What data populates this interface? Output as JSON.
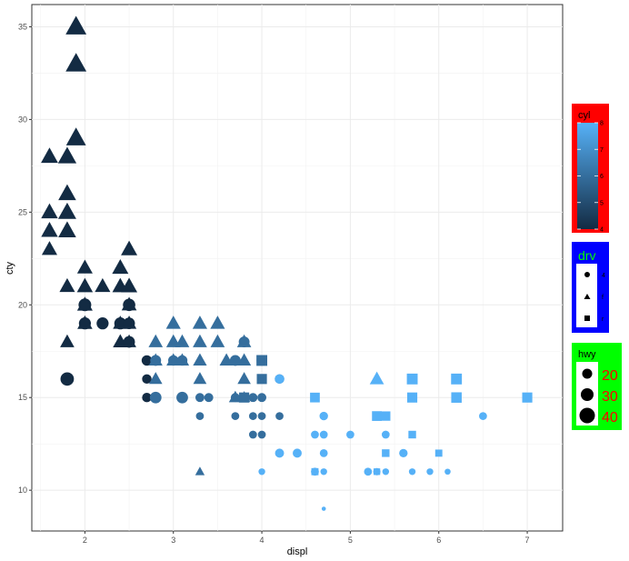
{
  "chart_data": {
    "type": "scatter",
    "xlabel": "displ",
    "ylabel": "cty",
    "xlim": [
      1.4,
      7.4
    ],
    "ylim": [
      7.8,
      36.2
    ],
    "x_ticks": [
      2,
      3,
      4,
      5,
      6,
      7
    ],
    "y_ticks": [
      10,
      15,
      20,
      25,
      30,
      35
    ],
    "grid": true,
    "shape_by": "drv",
    "color_by": "cyl",
    "size_by": "hwy",
    "points": [
      {
        "x": 1.9,
        "y": 35,
        "cyl": 4,
        "drv": "f",
        "hwy": 44
      },
      {
        "x": 1.9,
        "y": 33,
        "cyl": 4,
        "drv": "f",
        "hwy": 44
      },
      {
        "x": 1.9,
        "y": 29,
        "cyl": 4,
        "drv": "f",
        "hwy": 41
      },
      {
        "x": 1.6,
        "y": 28,
        "cyl": 4,
        "drv": "f",
        "hwy": 33
      },
      {
        "x": 1.8,
        "y": 28,
        "cyl": 4,
        "drv": "f",
        "hwy": 37
      },
      {
        "x": 1.8,
        "y": 26,
        "cyl": 4,
        "drv": "f",
        "hwy": 35
      },
      {
        "x": 1.6,
        "y": 25,
        "cyl": 4,
        "drv": "f",
        "hwy": 32
      },
      {
        "x": 1.8,
        "y": 25,
        "cyl": 4,
        "drv": "f",
        "hwy": 36
      },
      {
        "x": 1.6,
        "y": 24,
        "cyl": 4,
        "drv": "f",
        "hwy": 32
      },
      {
        "x": 1.8,
        "y": 24,
        "cyl": 4,
        "drv": "f",
        "hwy": 35
      },
      {
        "x": 1.6,
        "y": 23,
        "cyl": 4,
        "drv": "f",
        "hwy": 29
      },
      {
        "x": 2.5,
        "y": 23,
        "cyl": 4,
        "drv": "f",
        "hwy": 31
      },
      {
        "x": 2.0,
        "y": 22,
        "cyl": 4,
        "drv": "f",
        "hwy": 29
      },
      {
        "x": 2.4,
        "y": 22,
        "cyl": 4,
        "drv": "f",
        "hwy": 31
      },
      {
        "x": 1.8,
        "y": 21,
        "cyl": 4,
        "drv": "f",
        "hwy": 29
      },
      {
        "x": 2.0,
        "y": 21,
        "cyl": 4,
        "drv": "f",
        "hwy": 30
      },
      {
        "x": 2.2,
        "y": 21,
        "cyl": 4,
        "drv": "f",
        "hwy": 29
      },
      {
        "x": 2.4,
        "y": 21,
        "cyl": 4,
        "drv": "f",
        "hwy": 30
      },
      {
        "x": 2.5,
        "y": 21,
        "cyl": 4,
        "drv": "f",
        "hwy": 31
      },
      {
        "x": 2.0,
        "y": 20,
        "cyl": 4,
        "drv": "f",
        "hwy": 29
      },
      {
        "x": 2.5,
        "y": 20,
        "cyl": 4,
        "drv": "f",
        "hwy": 28
      },
      {
        "x": 2.0,
        "y": 20,
        "cyl": 4,
        "drv": "4",
        "hwy": 28
      },
      {
        "x": 2.5,
        "y": 20,
        "cyl": 4,
        "drv": "4",
        "hwy": 27
      },
      {
        "x": 2.0,
        "y": 19,
        "cyl": 4,
        "drv": "f",
        "hwy": 28
      },
      {
        "x": 2.4,
        "y": 19,
        "cyl": 4,
        "drv": "f",
        "hwy": 27
      },
      {
        "x": 2.5,
        "y": 19,
        "cyl": 4,
        "drv": "f",
        "hwy": 27
      },
      {
        "x": 2.0,
        "y": 19,
        "cyl": 4,
        "drv": "4",
        "hwy": 26
      },
      {
        "x": 2.2,
        "y": 19,
        "cyl": 4,
        "drv": "4",
        "hwy": 26
      },
      {
        "x": 2.4,
        "y": 19,
        "cyl": 4,
        "drv": "4",
        "hwy": 26
      },
      {
        "x": 2.5,
        "y": 19,
        "cyl": 4,
        "drv": "4",
        "hwy": 25
      },
      {
        "x": 1.8,
        "y": 18,
        "cyl": 4,
        "drv": "f",
        "hwy": 26
      },
      {
        "x": 2.4,
        "y": 18,
        "cyl": 4,
        "drv": "f",
        "hwy": 27
      },
      {
        "x": 2.5,
        "y": 18,
        "cyl": 4,
        "drv": "f",
        "hwy": 26
      },
      {
        "x": 2.5,
        "y": 18,
        "cyl": 4,
        "drv": "4",
        "hwy": 25
      },
      {
        "x": 1.8,
        "y": 16,
        "cyl": 4,
        "drv": "4",
        "hwy": 30
      },
      {
        "x": 2.7,
        "y": 17,
        "cyl": 4,
        "drv": "4",
        "hwy": 22
      },
      {
        "x": 2.7,
        "y": 16,
        "cyl": 4,
        "drv": "4",
        "hwy": 20
      },
      {
        "x": 2.7,
        "y": 15,
        "cyl": 4,
        "drv": "4",
        "hwy": 20
      },
      {
        "x": 2.8,
        "y": 18,
        "cyl": 6,
        "drv": "f",
        "hwy": 26
      },
      {
        "x": 3.0,
        "y": 18,
        "cyl": 6,
        "drv": "f",
        "hwy": 26
      },
      {
        "x": 3.1,
        "y": 18,
        "cyl": 6,
        "drv": "f",
        "hwy": 26
      },
      {
        "x": 3.3,
        "y": 18,
        "cyl": 6,
        "drv": "f",
        "hwy": 26
      },
      {
        "x": 3.5,
        "y": 18,
        "cyl": 6,
        "drv": "f",
        "hwy": 26
      },
      {
        "x": 3.8,
        "y": 18,
        "cyl": 6,
        "drv": "f",
        "hwy": 26
      },
      {
        "x": 3.0,
        "y": 19,
        "cyl": 6,
        "drv": "f",
        "hwy": 27
      },
      {
        "x": 3.3,
        "y": 19,
        "cyl": 6,
        "drv": "f",
        "hwy": 27
      },
      {
        "x": 3.5,
        "y": 19,
        "cyl": 6,
        "drv": "f",
        "hwy": 27
      },
      {
        "x": 2.8,
        "y": 17,
        "cyl": 6,
        "drv": "f",
        "hwy": 25
      },
      {
        "x": 3.0,
        "y": 17,
        "cyl": 6,
        "drv": "f",
        "hwy": 25
      },
      {
        "x": 3.1,
        "y": 17,
        "cyl": 6,
        "drv": "f",
        "hwy": 25
      },
      {
        "x": 3.3,
        "y": 17,
        "cyl": 6,
        "drv": "f",
        "hwy": 25
      },
      {
        "x": 3.6,
        "y": 17,
        "cyl": 6,
        "drv": "f",
        "hwy": 25
      },
      {
        "x": 3.8,
        "y": 17,
        "cyl": 6,
        "drv": "f",
        "hwy": 25
      },
      {
        "x": 2.8,
        "y": 16,
        "cyl": 6,
        "drv": "f",
        "hwy": 24
      },
      {
        "x": 3.3,
        "y": 16,
        "cyl": 6,
        "drv": "f",
        "hwy": 24
      },
      {
        "x": 3.8,
        "y": 16,
        "cyl": 6,
        "drv": "f",
        "hwy": 24
      },
      {
        "x": 3.3,
        "y": 11,
        "cyl": 6,
        "drv": "f",
        "hwy": 17
      },
      {
        "x": 3.8,
        "y": 15,
        "cyl": 6,
        "drv": "f",
        "hwy": 22
      },
      {
        "x": 3.7,
        "y": 15,
        "cyl": 6,
        "drv": "f",
        "hwy": 23
      },
      {
        "x": 3.8,
        "y": 18,
        "cyl": 6,
        "drv": "4",
        "hwy": 23
      },
      {
        "x": 2.8,
        "y": 17,
        "cyl": 6,
        "drv": "4",
        "hwy": 23
      },
      {
        "x": 3.0,
        "y": 17,
        "cyl": 6,
        "drv": "4",
        "hwy": 22
      },
      {
        "x": 3.1,
        "y": 17,
        "cyl": 6,
        "drv": "4",
        "hwy": 22
      },
      {
        "x": 3.7,
        "y": 17,
        "cyl": 6,
        "drv": "4",
        "hwy": 23
      },
      {
        "x": 4.0,
        "y": 17,
        "cyl": 6,
        "drv": "4",
        "hwy": 22
      },
      {
        "x": 4.0,
        "y": 16,
        "cyl": 6,
        "drv": "4",
        "hwy": 20
      },
      {
        "x": 4.2,
        "y": 16,
        "cyl": 6,
        "drv": "4",
        "hwy": 20
      },
      {
        "x": 2.8,
        "y": 15,
        "cyl": 6,
        "drv": "4",
        "hwy": 25
      },
      {
        "x": 3.1,
        "y": 15,
        "cyl": 6,
        "drv": "4",
        "hwy": 25
      },
      {
        "x": 3.3,
        "y": 15,
        "cyl": 6,
        "drv": "4",
        "hwy": 19
      },
      {
        "x": 3.4,
        "y": 15,
        "cyl": 6,
        "drv": "4",
        "hwy": 19
      },
      {
        "x": 3.7,
        "y": 15,
        "cyl": 6,
        "drv": "4",
        "hwy": 19
      },
      {
        "x": 3.9,
        "y": 15,
        "cyl": 6,
        "drv": "4",
        "hwy": 19
      },
      {
        "x": 4.0,
        "y": 15,
        "cyl": 6,
        "drv": "4",
        "hwy": 19
      },
      {
        "x": 3.3,
        "y": 14,
        "cyl": 6,
        "drv": "4",
        "hwy": 17
      },
      {
        "x": 3.7,
        "y": 14,
        "cyl": 6,
        "drv": "4",
        "hwy": 17
      },
      {
        "x": 3.9,
        "y": 14,
        "cyl": 6,
        "drv": "4",
        "hwy": 17
      },
      {
        "x": 4.0,
        "y": 14,
        "cyl": 6,
        "drv": "4",
        "hwy": 17
      },
      {
        "x": 4.2,
        "y": 14,
        "cyl": 6,
        "drv": "4",
        "hwy": 17
      },
      {
        "x": 3.9,
        "y": 13,
        "cyl": 6,
        "drv": "4",
        "hwy": 17
      },
      {
        "x": 4.0,
        "y": 13,
        "cyl": 6,
        "drv": "4",
        "hwy": 17
      },
      {
        "x": 4.0,
        "y": 17,
        "cyl": 6,
        "drv": "r",
        "hwy": 26
      },
      {
        "x": 4.0,
        "y": 16,
        "cyl": 6,
        "drv": "r",
        "hwy": 24
      },
      {
        "x": 3.8,
        "y": 15,
        "cyl": 6,
        "drv": "r",
        "hwy": 24
      },
      {
        "x": 5.3,
        "y": 16,
        "cyl": 8,
        "drv": "f",
        "hwy": 26
      },
      {
        "x": 4.2,
        "y": 16,
        "cyl": 8,
        "drv": "4",
        "hwy": 20
      },
      {
        "x": 4.0,
        "y": 11,
        "cyl": 8,
        "drv": "4",
        "hwy": 15
      },
      {
        "x": 4.2,
        "y": 12,
        "cyl": 8,
        "drv": "4",
        "hwy": 19
      },
      {
        "x": 4.4,
        "y": 12,
        "cyl": 8,
        "drv": "4",
        "hwy": 19
      },
      {
        "x": 4.6,
        "y": 11,
        "cyl": 8,
        "drv": "4",
        "hwy": 17
      },
      {
        "x": 4.6,
        "y": 13,
        "cyl": 8,
        "drv": "4",
        "hwy": 17
      },
      {
        "x": 4.7,
        "y": 14,
        "cyl": 8,
        "drv": "4",
        "hwy": 18
      },
      {
        "x": 4.7,
        "y": 13,
        "cyl": 8,
        "drv": "4",
        "hwy": 17
      },
      {
        "x": 4.7,
        "y": 12,
        "cyl": 8,
        "drv": "4",
        "hwy": 17
      },
      {
        "x": 4.7,
        "y": 11,
        "cyl": 8,
        "drv": "4",
        "hwy": 15
      },
      {
        "x": 4.7,
        "y": 9,
        "cyl": 8,
        "drv": "4",
        "hwy": 12
      },
      {
        "x": 5.0,
        "y": 13,
        "cyl": 8,
        "drv": "4",
        "hwy": 17
      },
      {
        "x": 5.2,
        "y": 11,
        "cyl": 8,
        "drv": "4",
        "hwy": 17
      },
      {
        "x": 5.3,
        "y": 11,
        "cyl": 8,
        "drv": "4",
        "hwy": 16
      },
      {
        "x": 5.4,
        "y": 13,
        "cyl": 8,
        "drv": "4",
        "hwy": 17
      },
      {
        "x": 5.4,
        "y": 11,
        "cyl": 8,
        "drv": "4",
        "hwy": 15
      },
      {
        "x": 5.6,
        "y": 12,
        "cyl": 8,
        "drv": "4",
        "hwy": 18
      },
      {
        "x": 5.7,
        "y": 13,
        "cyl": 8,
        "drv": "4",
        "hwy": 16
      },
      {
        "x": 5.7,
        "y": 11,
        "cyl": 8,
        "drv": "4",
        "hwy": 15
      },
      {
        "x": 5.9,
        "y": 11,
        "cyl": 8,
        "drv": "4",
        "hwy": 15
      },
      {
        "x": 6.1,
        "y": 11,
        "cyl": 8,
        "drv": "4",
        "hwy": 14
      },
      {
        "x": 6.5,
        "y": 14,
        "cyl": 8,
        "drv": "4",
        "hwy": 17
      },
      {
        "x": 4.6,
        "y": 15,
        "cyl": 8,
        "drv": "r",
        "hwy": 23
      },
      {
        "x": 4.6,
        "y": 11,
        "cyl": 8,
        "drv": "r",
        "hwy": 17
      },
      {
        "x": 5.3,
        "y": 14,
        "cyl": 8,
        "drv": "r",
        "hwy": 23
      },
      {
        "x": 5.4,
        "y": 14,
        "cyl": 8,
        "drv": "r",
        "hwy": 22
      },
      {
        "x": 5.4,
        "y": 12,
        "cyl": 8,
        "drv": "r",
        "hwy": 18
      },
      {
        "x": 5.3,
        "y": 11,
        "cyl": 8,
        "drv": "r",
        "hwy": 16
      },
      {
        "x": 5.7,
        "y": 16,
        "cyl": 8,
        "drv": "r",
        "hwy": 26
      },
      {
        "x": 5.7,
        "y": 15,
        "cyl": 8,
        "drv": "r",
        "hwy": 24
      },
      {
        "x": 5.7,
        "y": 13,
        "cyl": 8,
        "drv": "r",
        "hwy": 18
      },
      {
        "x": 6.0,
        "y": 12,
        "cyl": 8,
        "drv": "r",
        "hwy": 17
      },
      {
        "x": 6.2,
        "y": 16,
        "cyl": 8,
        "drv": "r",
        "hwy": 26
      },
      {
        "x": 6.2,
        "y": 15,
        "cyl": 8,
        "drv": "r",
        "hwy": 25
      },
      {
        "x": 7.0,
        "y": 15,
        "cyl": 8,
        "drv": "r",
        "hwy": 24
      }
    ],
    "legends": {
      "cyl": {
        "title": "cyl",
        "type": "colorbar",
        "range": [
          4,
          8
        ],
        "ticks": [
          "4",
          "5",
          "6",
          "7",
          "8"
        ],
        "low_color": "#132B43",
        "high_color": "#56B1F7",
        "background": "#FF0000"
      },
      "drv": {
        "title": "drv",
        "type": "shape",
        "keys": [
          {
            "label": "4",
            "shape": "circle"
          },
          {
            "label": "f",
            "shape": "triangle"
          },
          {
            "label": "r",
            "shape": "square"
          }
        ],
        "background": "#0000FF",
        "title_color": "#00FF00"
      },
      "hwy": {
        "title": "hwy",
        "type": "size",
        "keys": [
          "20",
          "30",
          "40"
        ],
        "background": "#00FF00",
        "label_color": "#FF0000"
      }
    }
  }
}
